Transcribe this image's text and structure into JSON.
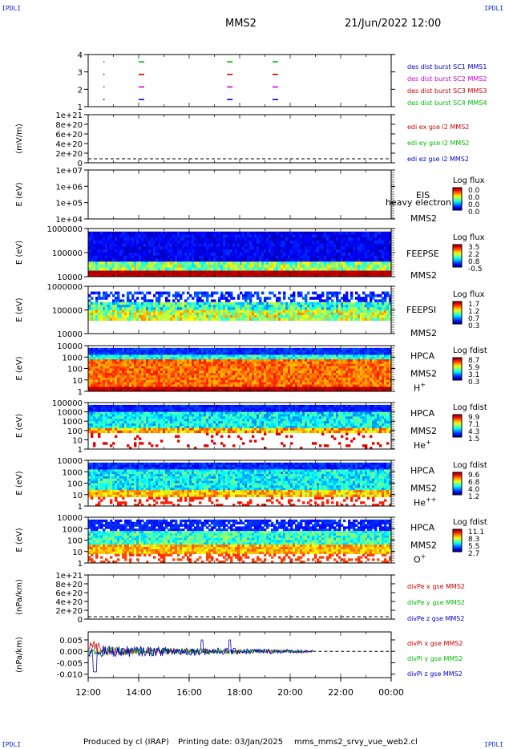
{
  "corner_label": "IPDLI",
  "header": {
    "spacecraft": "MMS2",
    "datetime": "21/Jun/2022 12:00"
  },
  "footer": {
    "produced_by": "Produced by cl (IRAP)",
    "printing_date": "Printing date: 03/Jan/2025",
    "filename": "mms_mms2_srvy_vue_web2.cl"
  },
  "time_axis": {
    "labels": [
      "12:00",
      "14:00",
      "16:00",
      "18:00",
      "20:00",
      "22:00",
      "00:00"
    ]
  },
  "chart_data": [
    {
      "type": "scatter",
      "title": "burst availability",
      "ylabel": "",
      "yticks": [
        "1",
        "2",
        "3",
        "4"
      ],
      "legend": [
        {
          "text": "des dist burst SC1 MMS1",
          "color": "#0000cc"
        },
        {
          "text": "des dist burst SC2 MMS2",
          "color": "#cc00cc"
        },
        {
          "text": "des dist burst SC3 MMS3",
          "color": "#cc0000"
        },
        {
          "text": "des dist burst SC4 MMS4",
          "color": "#00bb00"
        }
      ],
      "series": [
        {
          "level": 4,
          "color": "#00bb00",
          "times": [
            12.6,
            14.0,
            17.5,
            19.3
          ]
        },
        {
          "level": 3,
          "color": "#cc0000",
          "times": [
            12.6,
            14.0,
            17.5,
            19.3
          ]
        },
        {
          "level": 2,
          "color": "#cc00cc",
          "times": [
            12.6,
            14.0,
            17.5,
            19.3
          ]
        },
        {
          "level": 1,
          "color": "#0000cc",
          "times": [
            12.6,
            14.0,
            17.5,
            19.3
          ]
        }
      ]
    },
    {
      "type": "line",
      "ylabel": "(mV/m)",
      "yticks": [
        "0",
        "2e+20",
        "4e+20",
        "6e+20",
        "8e+20",
        "1e+21"
      ],
      "legend": [
        {
          "text": "edi ex gse l2 MMS2",
          "color": "#cc0000"
        },
        {
          "text": "edi ey gse l2 MMS2",
          "color": "#00bb00"
        },
        {
          "text": "edi ez gse l2 MMS2",
          "color": "#0000cc"
        }
      ]
    },
    {
      "type": "heatmap",
      "ylabel": "E (eV)",
      "yticks": [
        "1e+04",
        "1e+05",
        "1e+06",
        "1e+07"
      ],
      "instrument": "EIS",
      "sc": "MMS2",
      "overlay_text": "heavy electron to",
      "cbar_title": "Log flux",
      "cbar_ticks": [
        "0.0",
        "0.0",
        "0.0",
        "0.0"
      ],
      "empty": true
    },
    {
      "type": "heatmap",
      "ylabel": "E (eV)",
      "yticks": [
        "10000",
        "100000",
        "1000000"
      ],
      "instrument": "FEEPSE",
      "sc": "MMS2",
      "cbar_title": "Log flux",
      "cbar_ticks": [
        "3.5",
        "2.2",
        "0.8",
        "-0.5"
      ]
    },
    {
      "type": "heatmap",
      "ylabel": "E (eV)",
      "yticks": [
        "10000",
        "100000",
        "1000000"
      ],
      "instrument": "FEEPSI",
      "sc": "MMS2",
      "cbar_title": "Log flux",
      "cbar_ticks": [
        "1.7",
        "1.2",
        "0.7",
        "0.3"
      ]
    },
    {
      "type": "heatmap",
      "ylabel": "E (eV)",
      "yticks": [
        "1",
        "10",
        "100",
        "1000",
        "10000"
      ],
      "instrument": "HPCA",
      "sc": "MMS2",
      "species": "H",
      "species_sup": "+",
      "cbar_title": "Log fdist",
      "cbar_ticks": [
        "8.7",
        "5.9",
        "3.1",
        "0.3"
      ]
    },
    {
      "type": "heatmap",
      "ylabel": "E (eV)",
      "yticks": [
        "1",
        "10",
        "100",
        "1000",
        "10000",
        "100000"
      ],
      "instrument": "HPCA",
      "sc": "MMS2",
      "species": "He",
      "species_sup": "+",
      "cbar_title": "Log fdist",
      "cbar_ticks": [
        "9.9",
        "7.1",
        "4.3",
        "1.5"
      ]
    },
    {
      "type": "heatmap",
      "ylabel": "E (eV)",
      "yticks": [
        "1",
        "10",
        "100",
        "1000",
        "10000"
      ],
      "instrument": "HPCA",
      "sc": "MMS2",
      "species": "He",
      "species_sup": "++",
      "cbar_title": "Log fdist",
      "cbar_ticks": [
        "9.6",
        "6.8",
        "4.0",
        "1.2"
      ]
    },
    {
      "type": "heatmap",
      "ylabel": "E (eV)",
      "yticks": [
        "1",
        "10",
        "100",
        "1000",
        "10000"
      ],
      "instrument": "HPCA",
      "sc": "MMS2",
      "species": "O",
      "species_sup": "+",
      "cbar_title": "Log fdist",
      "cbar_ticks": [
        "11.1",
        "8.3",
        "5.5",
        "2.7"
      ]
    },
    {
      "type": "line",
      "ylabel": "(nPa/km)",
      "yticks": [
        "0",
        "2e+20",
        "4e+20",
        "6e+20",
        "8e+20",
        "1e+21"
      ],
      "legend": [
        {
          "text": "divPe x gse MMS2",
          "color": "#cc0000"
        },
        {
          "text": "divPe y gse MMS2",
          "color": "#00bb00"
        },
        {
          "text": "divPe z gse MMS2",
          "color": "#0000cc"
        }
      ]
    },
    {
      "type": "line",
      "ylabel": "(nPa/km)",
      "yticks": [
        "-0.010",
        "-0.005",
        "0.000",
        "0.005"
      ],
      "ylim": [
        -0.0115,
        0.0085
      ],
      "legend": [
        {
          "text": "divPi x gse MMS2",
          "color": "#cc0000"
        },
        {
          "text": "divPi y gse MMS2",
          "color": "#00bb00"
        },
        {
          "text": "divPi z gse MMS2",
          "color": "#0000cc"
        }
      ],
      "data_end_time": 20.9
    }
  ]
}
